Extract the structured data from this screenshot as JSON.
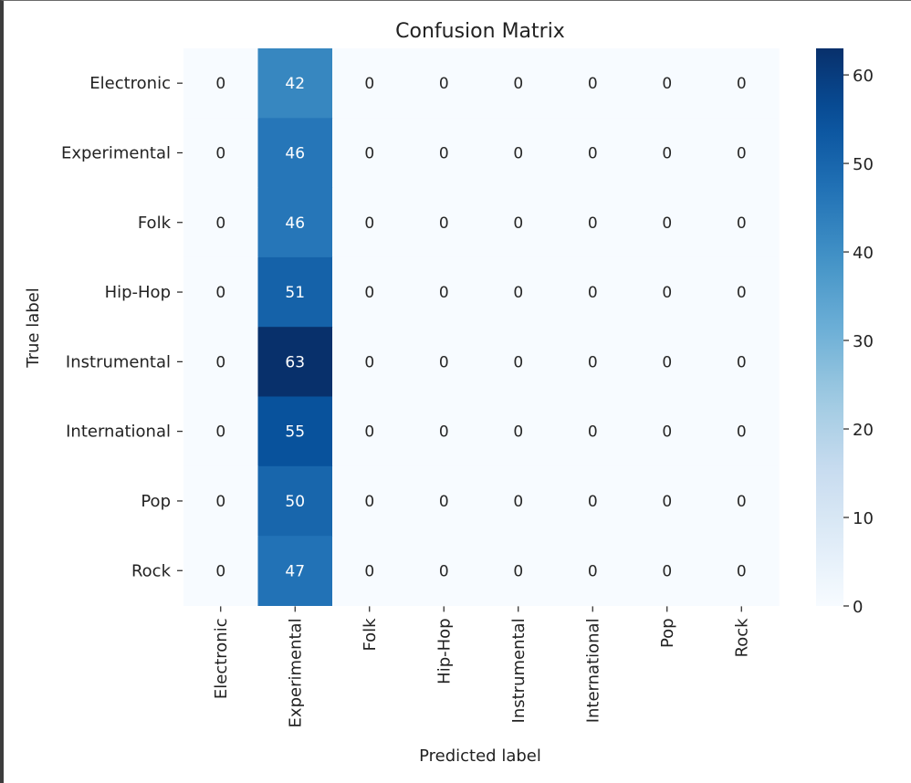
{
  "chart_data": {
    "type": "heatmap",
    "title": "Confusion Matrix",
    "xlabel": "Predicted label",
    "ylabel": "True label",
    "x_categories": [
      "Electronic",
      "Experimental",
      "Folk",
      "Hip-Hop",
      "Instrumental",
      "International",
      "Pop",
      "Rock"
    ],
    "y_categories": [
      "Electronic",
      "Experimental",
      "Folk",
      "Hip-Hop",
      "Instrumental",
      "International",
      "Pop",
      "Rock"
    ],
    "values": [
      [
        0,
        42,
        0,
        0,
        0,
        0,
        0,
        0
      ],
      [
        0,
        46,
        0,
        0,
        0,
        0,
        0,
        0
      ],
      [
        0,
        46,
        0,
        0,
        0,
        0,
        0,
        0
      ],
      [
        0,
        51,
        0,
        0,
        0,
        0,
        0,
        0
      ],
      [
        0,
        63,
        0,
        0,
        0,
        0,
        0,
        0
      ],
      [
        0,
        55,
        0,
        0,
        0,
        0,
        0,
        0
      ],
      [
        0,
        50,
        0,
        0,
        0,
        0,
        0,
        0
      ],
      [
        0,
        47,
        0,
        0,
        0,
        0,
        0,
        0
      ]
    ],
    "colorbar": {
      "range": [
        0,
        63
      ],
      "ticks": [
        0,
        10,
        20,
        30,
        40,
        50,
        60
      ]
    },
    "colormap": "Blues",
    "colors": {
      "low": "#f7fbff",
      "high": "#08306b"
    },
    "annotations": true,
    "grid": false
  }
}
